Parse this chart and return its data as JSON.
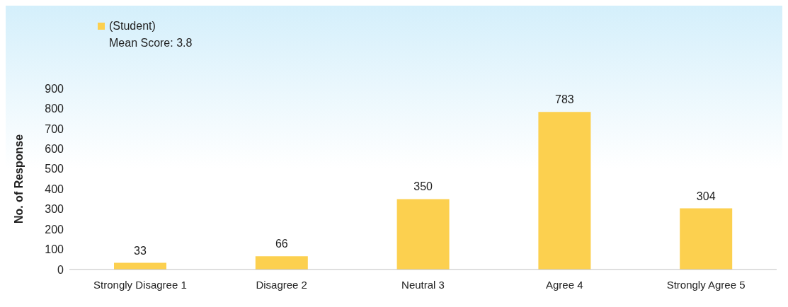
{
  "chart_data": {
    "type": "bar",
    "categories": [
      "Strongly Disagree 1",
      "Disagree 2",
      "Neutral 3",
      "Agree 4",
      "Strongly Agree 5"
    ],
    "series": [
      {
        "name": "(Student)",
        "color": "#fcd04f",
        "values": [
          33,
          66,
          350,
          783,
          304
        ]
      }
    ],
    "ylabel": "No. of Response",
    "ylim": [
      0,
      900
    ],
    "yticks": [
      0,
      100,
      200,
      300,
      400,
      500,
      600,
      700,
      800,
      900
    ],
    "annotations": [
      "Mean Score: 3.8"
    ],
    "data_labels": true,
    "grid": false,
    "legend": "top left"
  }
}
